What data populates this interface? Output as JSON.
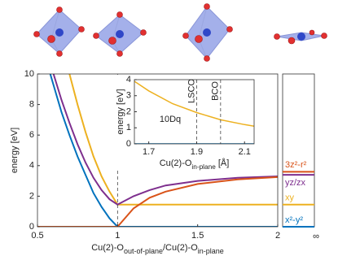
{
  "chart_data": [
    {
      "type": "line",
      "ylabel": "energy [eV]",
      "xlabel_parts": [
        "Cu(2)-O",
        "out-of-plane",
        "/Cu(2)-O",
        "in-plane"
      ],
      "xlim": [
        0.5,
        2
      ],
      "ylim": [
        0,
        10
      ],
      "xticks": [
        0.5,
        1,
        1.5,
        2
      ],
      "yticks": [
        0,
        2,
        4,
        6,
        8,
        10
      ],
      "vlines": [
        1
      ],
      "limit_label": "∞",
      "series": [
        {
          "name": "x²-y²",
          "color": "#0072BD",
          "x": [
            0.58,
            0.65,
            0.7,
            0.75,
            0.8,
            0.85,
            0.9,
            0.95,
            1,
            1.5,
            2
          ],
          "values": [
            10,
            7.5,
            6,
            4.6,
            3.4,
            2.2,
            1.3,
            0.55,
            0,
            0,
            0
          ],
          "limit": 0
        },
        {
          "name": "xy",
          "color": "#EDB120",
          "x": [
            0.7,
            0.75,
            0.8,
            0.85,
            0.9,
            0.95,
            1,
            1.5,
            2
          ],
          "values": [
            10,
            8,
            6.2,
            4.6,
            3.3,
            2.3,
            1.45,
            1.45,
            1.45
          ],
          "limit": 1.45
        },
        {
          "name": "yz/zx",
          "color": "#7E2F8E",
          "x": [
            0.6,
            0.65,
            0.7,
            0.75,
            0.8,
            0.85,
            0.9,
            0.95,
            1,
            1.1,
            1.2,
            1.3,
            1.5,
            1.75,
            2
          ],
          "values": [
            10,
            8.3,
            6.8,
            5.4,
            4.2,
            3.2,
            2.4,
            1.8,
            1.45,
            2.0,
            2.4,
            2.7,
            3.0,
            3.2,
            3.3
          ],
          "limit": 3.4
        },
        {
          "name": "3z²-r²",
          "color": "#D95319",
          "x": [
            0.5,
            1,
            1.1,
            1.2,
            1.3,
            1.5,
            1.75,
            2
          ],
          "values": [
            0,
            0,
            1.2,
            1.9,
            2.3,
            2.8,
            3.1,
            3.25
          ],
          "limit": 3.6
        }
      ]
    },
    {
      "type": "line",
      "ylabel": "energy [eV]",
      "xlabel_parts": [
        "Cu(2)-O",
        "in-plane",
        " [Å]"
      ],
      "annotation": "10Dq",
      "xlim": [
        1.64,
        2.14
      ],
      "ylim": [
        0,
        4
      ],
      "xticks": [
        1.7,
        1.9,
        2.1
      ],
      "yticks": [
        0,
        1,
        2,
        3,
        4
      ],
      "vlines": [
        {
          "x": 1.9,
          "label": "LSCO"
        },
        {
          "x": 2.0,
          "label": "BCO"
        }
      ],
      "series": [
        {
          "color": "#EDB120",
          "x": [
            1.64,
            1.7,
            1.8,
            1.9,
            2.0,
            2.1,
            2.14
          ],
          "values": [
            3.9,
            3.3,
            2.5,
            1.95,
            1.5,
            1.2,
            1.1
          ]
        },
        {
          "color": "#0072BD",
          "x": [
            1.64,
            2.14
          ],
          "values": [
            0,
            0
          ]
        }
      ]
    }
  ]
}
